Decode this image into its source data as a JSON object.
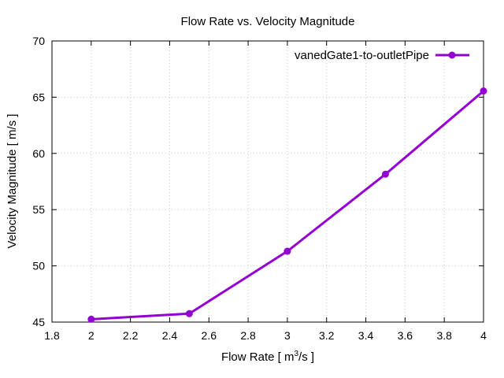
{
  "chart_data": {
    "type": "line",
    "title": "Flow Rate vs. Velocity Magnitude",
    "xlabel_prefix": "Flow Rate [ m",
    "xlabel_sup": "3",
    "xlabel_suffix": "/s ]",
    "ylabel": "Velocity Magnitude [ m/s ]",
    "xlim": [
      1.8,
      4.0
    ],
    "ylim": [
      45,
      70
    ],
    "x_ticks": [
      "1.8",
      "2",
      "2.2",
      "2.4",
      "2.6",
      "2.8",
      "3",
      "3.2",
      "3.4",
      "3.6",
      "3.8",
      "4"
    ],
    "y_ticks": [
      "45",
      "50",
      "55",
      "60",
      "65",
      "70"
    ],
    "grid": true,
    "legend_position": "top-right",
    "series": [
      {
        "name": "vanedGate1-to-outletPipe",
        "color": "#9400d3",
        "marker": "circle",
        "x": [
          2.0,
          2.5,
          3.0,
          3.5,
          4.0
        ],
        "y": [
          45.25,
          45.75,
          51.3,
          58.15,
          65.55
        ]
      }
    ]
  }
}
